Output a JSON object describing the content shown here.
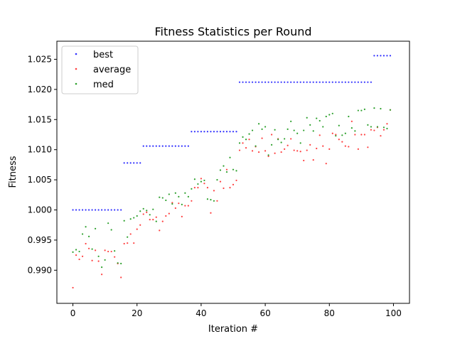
{
  "chart_data": {
    "type": "scatter",
    "title": "Fitness Statistics per Round",
    "xlabel": "Iteration #",
    "ylabel": "Fitness",
    "xlim": [
      -5,
      105
    ],
    "ylim": [
      0.9845,
      1.028
    ],
    "xticks": [
      0,
      20,
      40,
      60,
      80,
      100
    ],
    "yticks": [
      0.99,
      0.995,
      1.0,
      1.005,
      1.01,
      1.015,
      1.02,
      1.025
    ],
    "xtick_labels": [
      "0",
      "20",
      "40",
      "60",
      "80",
      "100"
    ],
    "ytick_labels": [
      "0.990",
      "0.995",
      "1.000",
      "1.005",
      "1.010",
      "1.015",
      "1.020",
      "1.025"
    ],
    "grid": false,
    "legend_position": "upper-left",
    "series": [
      {
        "name": "best",
        "color": "#3030ff",
        "x": [
          0,
          1,
          2,
          3,
          4,
          5,
          6,
          7,
          8,
          9,
          10,
          11,
          12,
          13,
          14,
          15,
          16,
          17,
          18,
          19,
          20,
          21,
          22,
          23,
          24,
          25,
          26,
          27,
          28,
          29,
          30,
          31,
          32,
          33,
          34,
          35,
          36,
          37,
          38,
          39,
          40,
          41,
          42,
          43,
          44,
          45,
          46,
          47,
          48,
          49,
          50,
          51,
          52,
          53,
          54,
          55,
          56,
          57,
          58,
          59,
          60,
          61,
          62,
          63,
          64,
          65,
          66,
          67,
          68,
          69,
          70,
          71,
          72,
          73,
          74,
          75,
          76,
          77,
          78,
          79,
          80,
          81,
          82,
          83,
          84,
          85,
          86,
          87,
          88,
          89,
          90,
          91,
          92,
          93,
          94,
          95,
          96,
          97,
          98,
          99
        ],
        "y": [
          1.0,
          1.0,
          1.0,
          1.0,
          1.0,
          1.0,
          1.0,
          1.0,
          1.0,
          1.0,
          1.0,
          1.0,
          1.0,
          1.0,
          1.0,
          1.0,
          1.0078,
          1.0078,
          1.0078,
          1.0078,
          1.0078,
          1.0078,
          1.0106,
          1.0106,
          1.0106,
          1.0106,
          1.0106,
          1.0106,
          1.0106,
          1.0106,
          1.0106,
          1.0106,
          1.0106,
          1.0106,
          1.0106,
          1.0106,
          1.0106,
          1.013,
          1.013,
          1.013,
          1.013,
          1.013,
          1.013,
          1.013,
          1.013,
          1.013,
          1.013,
          1.013,
          1.013,
          1.013,
          1.013,
          1.013,
          1.0212,
          1.0212,
          1.0212,
          1.0212,
          1.0212,
          1.0212,
          1.0212,
          1.0212,
          1.0212,
          1.0212,
          1.0212,
          1.0212,
          1.0212,
          1.0212,
          1.0212,
          1.0212,
          1.0212,
          1.0212,
          1.0212,
          1.0212,
          1.0212,
          1.0212,
          1.0212,
          1.0212,
          1.0212,
          1.0212,
          1.0212,
          1.0212,
          1.0212,
          1.0212,
          1.0212,
          1.0212,
          1.0212,
          1.0212,
          1.0212,
          1.0212,
          1.0212,
          1.0212,
          1.0212,
          1.0212,
          1.0212,
          1.0212,
          1.0256,
          1.0256,
          1.0256,
          1.0256,
          1.0256,
          1.0256
        ]
      },
      {
        "name": "average",
        "color": "#ff4040",
        "x": [
          0,
          1,
          2,
          3,
          4,
          5,
          6,
          7,
          8,
          9,
          10,
          11,
          12,
          13,
          14,
          15,
          16,
          17,
          18,
          19,
          20,
          21,
          22,
          23,
          24,
          25,
          26,
          27,
          28,
          29,
          30,
          31,
          32,
          33,
          34,
          35,
          36,
          37,
          38,
          39,
          40,
          41,
          42,
          43,
          44,
          45,
          46,
          47,
          48,
          49,
          50,
          51,
          52,
          53,
          54,
          55,
          56,
          57,
          58,
          59,
          60,
          61,
          62,
          63,
          64,
          65,
          66,
          67,
          68,
          69,
          70,
          71,
          72,
          73,
          74,
          75,
          76,
          77,
          78,
          79,
          80,
          81,
          82,
          83,
          84,
          85,
          86,
          87,
          88,
          89,
          90,
          91,
          92,
          93,
          94,
          95,
          96,
          97,
          98,
          99
        ],
        "y": [
          0.9871,
          0.9925,
          0.9918,
          0.9923,
          0.9944,
          0.9936,
          0.9916,
          0.9933,
          0.9915,
          0.9893,
          0.9933,
          0.9931,
          0.9931,
          0.9922,
          0.9911,
          0.9888,
          0.9944,
          0.9945,
          0.996,
          0.9945,
          0.9968,
          0.9975,
          0.9993,
          0.9996,
          0.9984,
          0.9984,
          0.9988,
          0.9966,
          0.9981,
          0.999,
          0.9994,
          1.0012,
          1.0003,
          1.0011,
          0.9989,
          1.0007,
          1.0007,
          1.0015,
          1.0037,
          1.0037,
          1.0052,
          1.0044,
          1.0037,
          0.9995,
          1.0032,
          1.0015,
          1.0047,
          1.0036,
          1.0067,
          1.0037,
          1.0042,
          1.0049,
          1.0099,
          1.0111,
          1.0103,
          1.0117,
          1.0098,
          1.0105,
          1.0096,
          1.0119,
          1.0098,
          1.0089,
          1.0125,
          1.0094,
          1.0118,
          1.0096,
          1.0101,
          1.0107,
          1.0118,
          1.0099,
          1.0098,
          1.0097,
          1.0082,
          1.0099,
          1.0108,
          1.0083,
          1.0102,
          1.0124,
          1.0106,
          1.0077,
          1.0101,
          1.0127,
          1.0125,
          1.0117,
          1.0113,
          1.0106,
          1.0105,
          1.0147,
          1.0125,
          1.0101,
          1.0125,
          1.0125,
          1.0104,
          1.0133,
          1.0132,
          1.0137,
          1.0123,
          1.0133,
          1.0143,
          1.0166
        ]
      },
      {
        "name": "med",
        "color": "#2ca02c",
        "x": [
          0,
          1,
          2,
          3,
          4,
          5,
          6,
          7,
          8,
          9,
          10,
          11,
          12,
          13,
          14,
          15,
          16,
          17,
          18,
          19,
          20,
          21,
          22,
          23,
          24,
          25,
          26,
          27,
          28,
          29,
          30,
          31,
          32,
          33,
          34,
          35,
          36,
          37,
          38,
          39,
          40,
          41,
          42,
          43,
          44,
          45,
          46,
          47,
          48,
          49,
          50,
          51,
          52,
          53,
          54,
          55,
          56,
          57,
          58,
          59,
          60,
          61,
          62,
          63,
          64,
          65,
          66,
          67,
          68,
          69,
          70,
          71,
          72,
          73,
          74,
          75,
          76,
          77,
          78,
          79,
          80,
          81,
          82,
          83,
          84,
          85,
          86,
          87,
          88,
          89,
          90,
          91,
          92,
          93,
          94,
          95,
          96,
          97,
          98,
          99
        ],
        "y": [
          0.993,
          0.9934,
          0.9931,
          0.996,
          0.9972,
          0.9956,
          0.9935,
          0.9969,
          0.9923,
          0.9905,
          0.9917,
          0.9978,
          0.9967,
          0.9932,
          0.9912,
          0.9911,
          0.9982,
          0.9955,
          0.9985,
          0.9987,
          0.999,
          0.9998,
          1.0002,
          0.9999,
          0.9992,
          1.0001,
          0.9981,
          1.0021,
          1.002,
          1.0016,
          1.0026,
          1.001,
          1.0028,
          1.0022,
          1.0009,
          1.0028,
          1.0022,
          1.0035,
          1.0051,
          1.0043,
          1.0047,
          1.0049,
          1.0018,
          1.0017,
          1.0015,
          1.005,
          1.0066,
          1.0073,
          1.0063,
          1.0087,
          1.0067,
          1.0065,
          1.0111,
          1.0121,
          1.0117,
          1.0126,
          1.0132,
          1.0106,
          1.0143,
          1.0134,
          1.0138,
          1.0091,
          1.0108,
          1.0133,
          1.0117,
          1.0112,
          1.0118,
          1.0134,
          1.0147,
          1.0132,
          1.0127,
          1.0111,
          1.0132,
          1.0153,
          1.0141,
          1.0131,
          1.0152,
          1.0148,
          1.0138,
          1.0155,
          1.0158,
          1.016,
          1.0123,
          1.014,
          1.0124,
          1.0127,
          1.0155,
          1.0136,
          1.0131,
          1.0165,
          1.0165,
          1.0167,
          1.0141,
          1.0138,
          1.0169,
          1.0138,
          1.0168,
          1.0137,
          1.0135,
          1.0166
        ]
      }
    ]
  }
}
